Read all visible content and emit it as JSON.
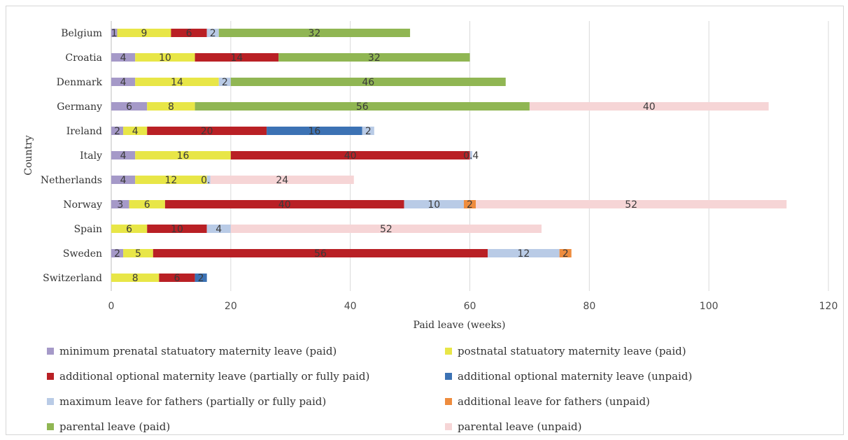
{
  "chart_data": {
    "type": "bar",
    "orientation": "horizontal",
    "stacked": true,
    "title": "",
    "xlabel": "Paid leave (weeks)",
    "ylabel": "Country",
    "xlim": [
      0,
      120
    ],
    "xticks": [
      "0",
      "20",
      "40",
      "60",
      "80",
      "100",
      "120"
    ],
    "grid": "vertical",
    "legend_position": "bottom",
    "categories": [
      "Belgium",
      "Croatia",
      "Denmark",
      "Germany",
      "Ireland",
      "Italy",
      "Netherlands",
      "Norway",
      "Spain",
      "Sweden",
      "Switzerland"
    ],
    "series": [
      {
        "name": "minimum prenatal statuatory maternity leave (paid)",
        "color": "#a599c8",
        "values": [
          1,
          4,
          4,
          6,
          2,
          4,
          4,
          3,
          0,
          2,
          0
        ]
      },
      {
        "name": "postnatal statuatory maternity leave (paid)",
        "color": "#e8e647",
        "values": [
          9,
          10,
          14,
          8,
          4,
          16,
          12,
          6,
          6,
          5,
          8
        ]
      },
      {
        "name": "additional optional maternity leave (partially or fully paid)",
        "color": "#b92025",
        "values": [
          6,
          14,
          0,
          0,
          20,
          40,
          0,
          40,
          10,
          56,
          6
        ]
      },
      {
        "name": "additional optional maternity leave  (unpaid)",
        "color": "#3c72b4",
        "values": [
          0,
          0,
          0,
          0,
          16,
          0,
          0,
          0,
          0,
          0,
          2
        ]
      },
      {
        "name": "maximum leave for fathers (partially or fully paid)",
        "color": "#b9cbe6",
        "values": [
          2,
          0,
          2,
          0,
          2,
          0.4,
          0.6,
          10,
          4,
          12,
          0
        ]
      },
      {
        "name": "additional leave for fathers (unpaid)",
        "color": "#ee8c3e",
        "values": [
          0,
          0,
          0,
          0,
          0,
          0,
          0,
          2,
          0,
          2,
          0
        ]
      },
      {
        "name": "parental leave (paid)",
        "color": "#90b653",
        "values": [
          32,
          32,
          46,
          56,
          0,
          0,
          0,
          0,
          0,
          0,
          0
        ]
      },
      {
        "name": "parental leave (unpaid)",
        "color": "#f6d5d6",
        "values": [
          0,
          0,
          0,
          40,
          0,
          0,
          24,
          52,
          52,
          0,
          0
        ]
      }
    ],
    "data_labels": [
      [
        "1",
        "9",
        "6",
        "",
        "2",
        "",
        "32",
        ""
      ],
      [
        "4",
        "10",
        "14",
        "",
        "",
        "",
        "32",
        ""
      ],
      [
        "4",
        "14",
        "",
        "",
        "2",
        "",
        "46",
        ""
      ],
      [
        "6",
        "8",
        "",
        "",
        "",
        "",
        "56",
        "40"
      ],
      [
        "2",
        "4",
        "20",
        "16",
        "2",
        "",
        "",
        ""
      ],
      [
        "4",
        "16",
        "40",
        "",
        "0.4",
        "",
        "",
        ""
      ],
      [
        "4",
        "12",
        "",
        "",
        "0.6",
        "",
        "",
        "24"
      ],
      [
        "3",
        "6",
        "40",
        "",
        "10",
        "2",
        "",
        "52"
      ],
      [
        "",
        "6",
        "10",
        "",
        "4",
        "",
        "",
        "52"
      ],
      [
        "2",
        "5",
        "56",
        "",
        "12",
        "2",
        "",
        ""
      ],
      [
        "",
        "8",
        "6",
        "2",
        "",
        "",
        "",
        ""
      ]
    ]
  }
}
